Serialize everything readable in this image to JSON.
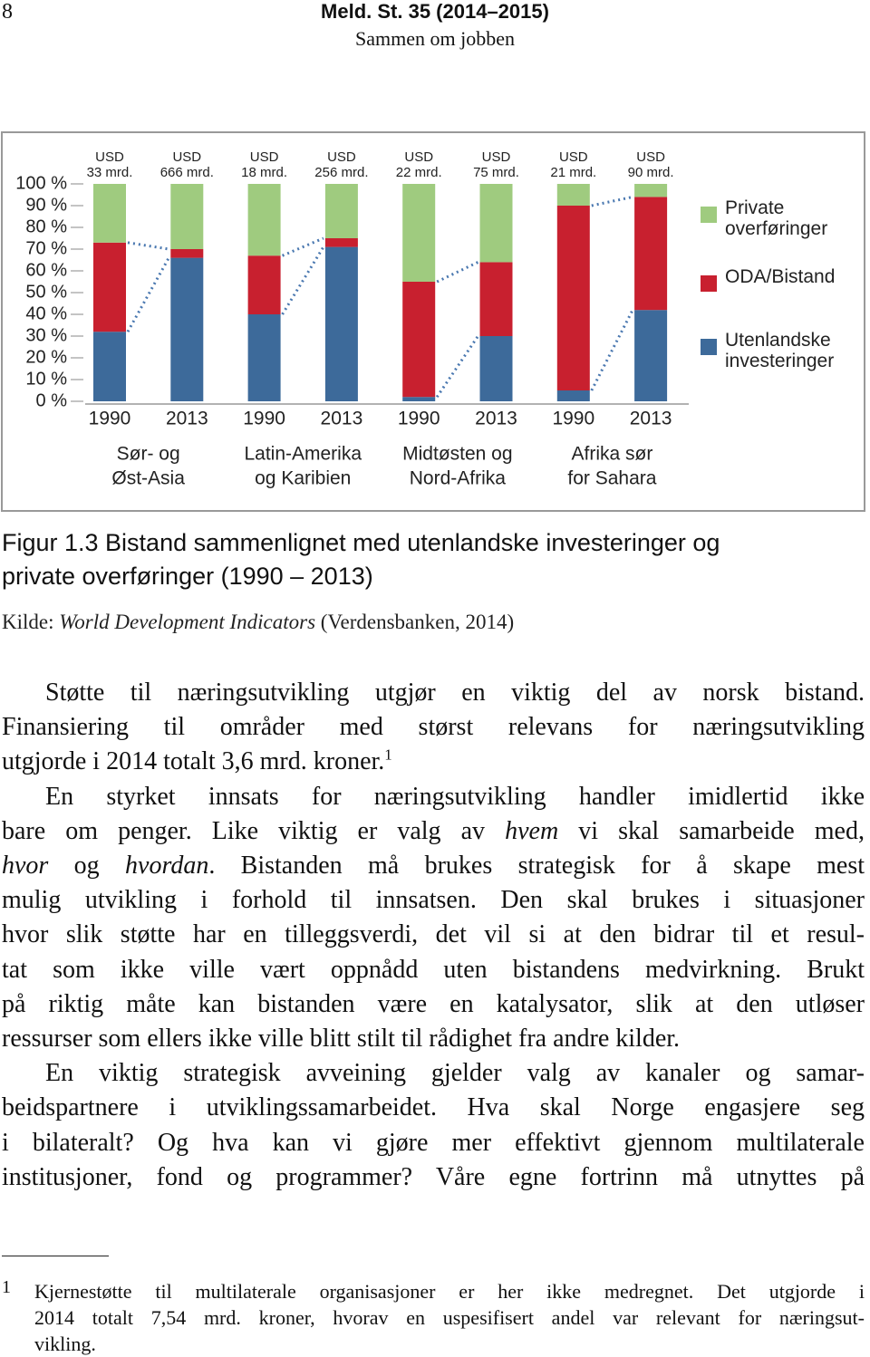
{
  "header": {
    "page_number": "8",
    "title": "Meld. St. 35 (2014–2015)",
    "subtitle": "Sammen om jobben"
  },
  "chart_data": {
    "type": "bar",
    "stacked": true,
    "categories": [
      "1990",
      "2013",
      "1990",
      "2013",
      "1990",
      "2013",
      "1990",
      "2013"
    ],
    "groups": [
      [
        "Sør- og",
        "Øst-Asia"
      ],
      [
        "Latin-Amerika",
        "og Karibien"
      ],
      [
        "Midtøsten og",
        "Nord-Afrika"
      ],
      [
        "Afrika sør",
        "for Sahara"
      ]
    ],
    "annotations": [
      [
        "USD",
        "33 mrd."
      ],
      [
        "USD",
        "666 mrd."
      ],
      [
        "USD",
        "18 mrd."
      ],
      [
        "USD",
        "256 mrd."
      ],
      [
        "USD",
        "22 mrd."
      ],
      [
        "USD",
        "75 mrd."
      ],
      [
        "USD",
        "21 mrd."
      ],
      [
        "USD",
        "90 mrd."
      ]
    ],
    "series": [
      {
        "name": "Utenlandske investeringer",
        "color": "#3d6a9a",
        "values": [
          32,
          66,
          40,
          71,
          2,
          30,
          5,
          42
        ]
      },
      {
        "name": "ODA/Bistand",
        "color": "#c8202f",
        "values": [
          41,
          4,
          27,
          4,
          53,
          34,
          85,
          52
        ]
      },
      {
        "name": "Private overføringer",
        "color": "#9fcb7f",
        "values": [
          27,
          30,
          33,
          25,
          45,
          36,
          10,
          6
        ]
      }
    ],
    "ylim": [
      0,
      100
    ],
    "yticks": [
      {
        "value": 0,
        "label": "0 %"
      },
      {
        "value": 10,
        "label": "10 %"
      },
      {
        "value": 20,
        "label": "20 %"
      },
      {
        "value": 30,
        "label": "30 %"
      },
      {
        "value": 40,
        "label": "40 %"
      },
      {
        "value": 50,
        "label": "50 %"
      },
      {
        "value": 60,
        "label": "60 %"
      },
      {
        "value": 70,
        "label": "70 %"
      },
      {
        "value": 80,
        "label": "80 %"
      },
      {
        "value": 90,
        "label": "90 %"
      },
      {
        "value": 100,
        "label": "100 %"
      }
    ],
    "grid": false,
    "legend": "right"
  },
  "caption": {
    "lines": [
      "Figur 1.3 Bistand sammenlignet med utenlandske investeringer og",
      "private overføringer (1990 – 2013)"
    ]
  },
  "source": {
    "prefix": "Kilde: ",
    "italic": "World Development Indicators",
    "suffix": " (Verdensbanken, 2014)"
  },
  "body": {
    "paragraphs": [
      {
        "lines": [
          [
            "Støtte til næringsutvikling utgjør en viktig del av norsk bistand."
          ],
          [
            "Finansiering til områder med størst relevans for næringsutvikling"
          ],
          [
            "utgjorde i 2014 totalt 3,6 mrd. kroner.",
            {
              "sup": "1"
            }
          ]
        ]
      },
      {
        "lines": [
          [
            "En styrket innsats for næringsutvikling handler imidlertid ikke"
          ],
          [
            "bare om penger. Like viktig er valg av ",
            {
              "italic": "hvem"
            },
            " vi skal samarbeide med,"
          ],
          [
            {
              "italic": "hvor"
            },
            " og ",
            {
              "italic": "hvordan"
            },
            ". Bistanden må brukes strategisk for å skape mest"
          ],
          [
            "mulig utvikling i forhold til innsatsen. Den skal brukes i situasjoner"
          ],
          [
            "hvor slik støtte har en tilleggsverdi, det vil si at den bidrar til et resul-"
          ],
          [
            "tat som ikke ville vært oppnådd uten bistandens medvirkning. Brukt"
          ],
          [
            "på riktig måte kan bistanden være en katalysator, slik at den utløser"
          ],
          [
            "ressurser som ellers ikke ville blitt stilt til rådighet fra andre kilder."
          ]
        ]
      },
      {
        "lines": [
          [
            "En viktig strategisk avveining gjelder valg av kanaler og samar-"
          ],
          [
            "beidspartnere i utviklingssamarbeidet. Hva skal Norge engasjere seg"
          ],
          [
            "i bilateralt? Og hva kan vi gjøre mer effektivt gjennom multilaterale"
          ],
          [
            "institusjoner, fond og programmer? Våre egne fortrinn må utnyttes på"
          ]
        ]
      }
    ]
  },
  "footnote": {
    "number": "1",
    "lines": [
      "Kjernestøtte til multilaterale organisasjoner er her ikke medregnet. Det utgjorde i",
      "2014 totalt 7,54 mrd. kroner, hvorav en uspesifisert andel var relevant for næringsut-",
      "vikling."
    ]
  }
}
